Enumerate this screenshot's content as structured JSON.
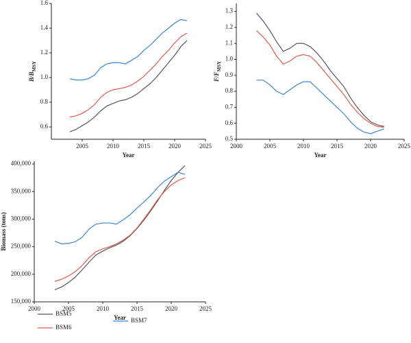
{
  "chart_data": [
    {
      "type": "line",
      "xlabel": "Year",
      "ylabel_main": "B/B",
      "ylabel_sub": "MSY",
      "x": [
        2003,
        2004,
        2005,
        2006,
        2007,
        2008,
        2009,
        2010,
        2011,
        2012,
        2013,
        2014,
        2015,
        2016,
        2017,
        2018,
        2019,
        2020,
        2021,
        2022
      ],
      "xlim": [
        2000,
        2025
      ],
      "xticks": [
        2005,
        2010,
        2015,
        2020,
        2025
      ],
      "ylim": [
        0.5,
        1.6
      ],
      "yticks": [
        0.6,
        0.8,
        {
          "value": 1,
          "label": "1.0"
        },
        1.2,
        1.4,
        1.6
      ],
      "series": [
        {
          "name": "BSM5",
          "color": "#555555",
          "values": [
            0.56,
            0.58,
            0.61,
            0.64,
            0.68,
            0.73,
            0.77,
            0.79,
            0.81,
            0.82,
            0.84,
            0.87,
            0.91,
            0.95,
            1.0,
            1.06,
            1.12,
            1.18,
            1.25,
            1.3
          ]
        },
        {
          "name": "BSM6",
          "color": "#e05a4e",
          "values": [
            0.68,
            0.69,
            0.71,
            0.74,
            0.78,
            0.84,
            0.88,
            0.9,
            0.91,
            0.92,
            0.94,
            0.97,
            1.01,
            1.06,
            1.11,
            1.17,
            1.22,
            1.28,
            1.33,
            1.36
          ]
        },
        {
          "name": "BSM7",
          "color": "#3a86d4",
          "values": [
            0.99,
            0.98,
            0.98,
            0.99,
            1.02,
            1.08,
            1.11,
            1.12,
            1.12,
            1.11,
            1.14,
            1.17,
            1.22,
            1.26,
            1.31,
            1.36,
            1.4,
            1.44,
            1.47,
            1.46
          ]
        }
      ]
    },
    {
      "type": "line",
      "xlabel": "Year",
      "ylabel_main": "F/F",
      "ylabel_sub": "MSY",
      "x": [
        2003,
        2004,
        2005,
        2006,
        2007,
        2008,
        2009,
        2010,
        2011,
        2012,
        2013,
        2014,
        2015,
        2016,
        2017,
        2018,
        2019,
        2020,
        2021,
        2022
      ],
      "xlim": [
        2000,
        2025
      ],
      "xticks": [
        2000,
        2005,
        2010,
        2015,
        2020,
        2025
      ],
      "ylim": [
        0.5,
        1.35
      ],
      "yticks": [
        0.5,
        0.6,
        0.7,
        0.8,
        0.9,
        {
          "value": 1,
          "label": "1.0"
        },
        1.1,
        1.2,
        1.3
      ],
      "series": [
        {
          "name": "BSM5",
          "values": [
            1.29,
            1.24,
            1.18,
            1.11,
            1.05,
            1.07,
            1.1,
            1.1,
            1.08,
            1.04,
            0.99,
            0.93,
            0.88,
            0.83,
            0.76,
            0.7,
            0.65,
            0.61,
            0.59,
            0.58
          ]
        },
        {
          "name": "BSM6",
          "values": [
            1.18,
            1.14,
            1.09,
            1.02,
            0.97,
            0.99,
            1.02,
            1.03,
            1.02,
            0.98,
            0.93,
            0.88,
            0.83,
            0.78,
            0.72,
            0.67,
            0.63,
            0.6,
            0.58,
            0.575
          ]
        },
        {
          "name": "BSM7",
          "values": [
            0.87,
            0.87,
            0.84,
            0.8,
            0.78,
            0.81,
            0.84,
            0.86,
            0.86,
            0.82,
            0.78,
            0.74,
            0.7,
            0.66,
            0.61,
            0.57,
            0.545,
            0.535,
            0.55,
            0.565
          ]
        }
      ]
    },
    {
      "type": "line",
      "xlabel": "Year",
      "ylabel_main": "Biomass (tons)",
      "x": [
        2003,
        2004,
        2005,
        2006,
        2007,
        2008,
        2009,
        2010,
        2011,
        2012,
        2013,
        2014,
        2015,
        2016,
        2017,
        2018,
        2019,
        2020,
        2021,
        2022
      ],
      "xlim": [
        2000,
        2025
      ],
      "xticks": [
        2000,
        2005,
        2010,
        2015,
        2020,
        2025
      ],
      "ylim": [
        150000,
        405000
      ],
      "yticks": [
        {
          "value": 150000,
          "label": "150,000"
        },
        {
          "value": 200000,
          "label": "200,000"
        },
        {
          "value": 250000,
          "label": "250,000"
        },
        {
          "value": 300000,
          "label": "300,000"
        },
        {
          "value": 350000,
          "label": "350,000"
        },
        {
          "value": 400000,
          "label": "400,000"
        }
      ],
      "series": [
        {
          "name": "BSM5",
          "values": [
            172000,
            177000,
            185000,
            195000,
            208000,
            222000,
            235000,
            242000,
            248000,
            253000,
            260000,
            270000,
            283000,
            298000,
            315000,
            333000,
            352000,
            370000,
            385000,
            397000
          ]
        },
        {
          "name": "BSM6",
          "values": [
            187000,
            191000,
            197000,
            205000,
            216000,
            230000,
            241000,
            246000,
            250000,
            255000,
            262000,
            271000,
            284000,
            300000,
            317000,
            335000,
            350000,
            362000,
            370000,
            375000
          ]
        },
        {
          "name": "BSM7",
          "values": [
            260000,
            255000,
            256000,
            259000,
            267000,
            282000,
            291000,
            293000,
            293000,
            291000,
            299000,
            308000,
            320000,
            331000,
            343000,
            357000,
            369000,
            377000,
            385000,
            381000
          ]
        }
      ]
    }
  ]
}
